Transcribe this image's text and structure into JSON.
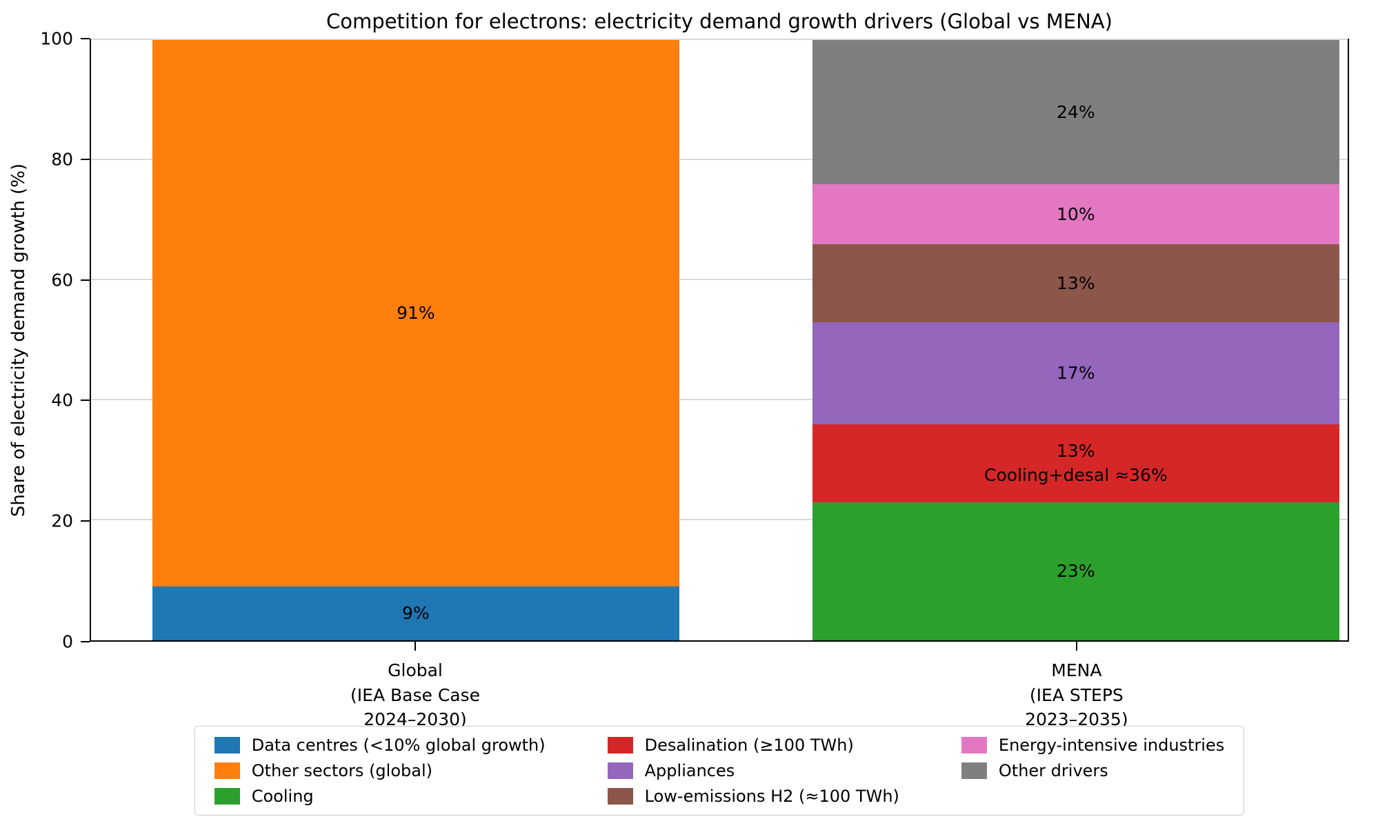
{
  "title": "Competition for electrons: electricity demand growth drivers (Global vs MENA)",
  "ylabel": "Share of electricity demand growth (%)",
  "chart_data": {
    "type": "bar",
    "stacked": true,
    "title": "Competition for electrons: electricity demand growth drivers (Global vs MENA)",
    "xlabel": "",
    "ylabel": "Share of electricity demand growth (%)",
    "ylim": [
      0,
      100
    ],
    "yticks": [
      0,
      20,
      40,
      60,
      80,
      100
    ],
    "grid": true,
    "legend_position": "bottom",
    "bars": [
      {
        "category_lines": [
          "Global",
          "(IEA Base Case",
          "2024–2030)"
        ],
        "segments": [
          {
            "name": "Data centres (<10% global growth)",
            "value": 9,
            "color": "#1f77b4",
            "labels": [
              "9%"
            ]
          },
          {
            "name": "Other sectors (global)",
            "value": 91,
            "color": "#ff7f0e",
            "labels": [
              "91%"
            ]
          }
        ]
      },
      {
        "category_lines": [
          "MENA",
          "(IEA STEPS",
          "2023–2035)"
        ],
        "segments": [
          {
            "name": "Cooling",
            "value": 23,
            "color": "#2ca02c",
            "labels": [
              "23%"
            ]
          },
          {
            "name": "Desalination (≥100 TWh)",
            "value": 13,
            "color": "#d62728",
            "labels": [
              "13%",
              "Cooling+desal ≈36%"
            ]
          },
          {
            "name": "Appliances",
            "value": 17,
            "color": "#9467bd",
            "labels": [
              "17%"
            ]
          },
          {
            "name": "Low-emissions H2 (≈100 TWh)",
            "value": 13,
            "color": "#8c564b",
            "labels": [
              "13%"
            ]
          },
          {
            "name": "Energy-intensive industries",
            "value": 10,
            "color": "#e377c2",
            "labels": [
              "10%"
            ]
          },
          {
            "name": "Other drivers",
            "value": 24,
            "color": "#7f7f7f",
            "labels": [
              "24%"
            ]
          }
        ]
      }
    ],
    "legend": [
      {
        "label": "Data centres (<10% global growth)",
        "color": "#1f77b4"
      },
      {
        "label": "Other sectors (global)",
        "color": "#ff7f0e"
      },
      {
        "label": "Cooling",
        "color": "#2ca02c"
      },
      {
        "label": "Desalination (≥100 TWh)",
        "color": "#d62728"
      },
      {
        "label": "Appliances",
        "color": "#9467bd"
      },
      {
        "label": "Low-emissions H2 (≈100 TWh)",
        "color": "#8c564b"
      },
      {
        "label": "Energy-intensive industries",
        "color": "#e377c2"
      },
      {
        "label": "Other drivers",
        "color": "#7f7f7f"
      }
    ]
  }
}
